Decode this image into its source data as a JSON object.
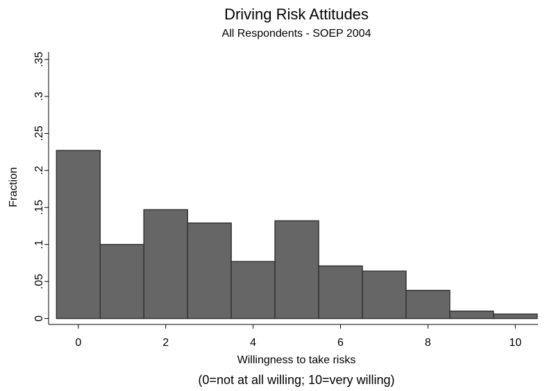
{
  "chart_data": {
    "type": "histogram",
    "title": "Driving Risk Attitudes",
    "subtitle": "All Respondents - SOEP 2004",
    "x_label": "Willingness to take risks",
    "note": "(0=not at all willing; 10=very willing)",
    "y_label": "Fraction",
    "bins": [
      -0.5,
      0.5,
      1.5,
      2.5,
      3.5,
      4.5,
      5.5,
      6.5,
      7.5,
      8.5,
      9.5,
      10.5
    ],
    "values": [
      0.227,
      0.1,
      0.147,
      0.129,
      0.077,
      0.132,
      0.071,
      0.064,
      0.038,
      0.01,
      0.006
    ],
    "color": "#666666",
    "edge_color": "#333333",
    "xlim": [
      -0.68,
      10.52
    ],
    "ylim": [
      -0.008,
      0.36
    ],
    "xticks": [
      0,
      2,
      4,
      6,
      8,
      10
    ],
    "yticks": [
      0,
      {
        "value": 0.05,
        "label": ".05"
      },
      {
        "value": 0.1,
        "label": ".1"
      },
      {
        "value": 0.15,
        "label": ".15"
      },
      {
        "value": 0.2,
        "label": ".2"
      },
      {
        "value": 0.25,
        "label": ".25"
      },
      {
        "value": 0.3,
        "label": ".3"
      },
      {
        "value": 0.35,
        "label": ".35"
      }
    ],
    "grid": false
  }
}
